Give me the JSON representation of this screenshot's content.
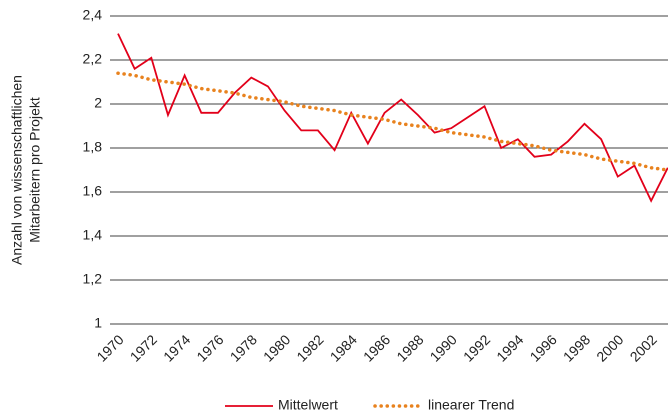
{
  "chart_data": {
    "type": "line",
    "y_label": [
      "Anzahl von wissenschaftlichen",
      "Mitarbeitern pro Projekt"
    ],
    "categories": [
      "1970",
      null,
      "1972",
      null,
      "1974",
      null,
      "1976",
      null,
      "1978",
      null,
      "1980",
      null,
      "1982",
      null,
      "1984",
      null,
      "1986",
      null,
      "1988",
      null,
      "1990",
      null,
      "1992",
      null,
      "1994",
      null,
      "1996",
      null,
      "1998",
      null,
      "2000",
      null,
      "2002",
      null
    ],
    "series": [
      {
        "name": "Mittelwert",
        "color": "#e2001a",
        "style": "solid",
        "values": [
          2.32,
          2.16,
          2.21,
          1.95,
          2.13,
          1.96,
          1.96,
          2.05,
          2.12,
          2.08,
          1.97,
          1.88,
          1.88,
          1.79,
          1.96,
          1.82,
          1.96,
          2.02,
          1.95,
          1.87,
          1.89,
          1.94,
          1.99,
          1.8,
          1.84,
          1.76,
          1.77,
          1.83,
          1.91,
          1.84,
          1.67,
          1.72,
          1.56,
          1.71
        ]
      },
      {
        "name": "linearer Trend",
        "color": "#e8821e",
        "style": "dotted",
        "values": [
          2.14,
          2.13,
          2.11,
          2.1,
          2.09,
          2.07,
          2.06,
          2.05,
          2.03,
          2.02,
          2.01,
          1.99,
          1.98,
          1.97,
          1.95,
          1.94,
          1.93,
          1.91,
          1.9,
          1.89,
          1.87,
          1.86,
          1.85,
          1.83,
          1.82,
          1.81,
          1.79,
          1.78,
          1.77,
          1.75,
          1.74,
          1.73,
          1.71,
          1.7
        ]
      }
    ],
    "ylim": [
      1,
      2.4
    ],
    "yticks": [
      1,
      {
        "value": 1.2,
        "label": "1,2"
      },
      {
        "value": 1.4,
        "label": "1,4"
      },
      {
        "value": 1.6,
        "label": "1,6"
      },
      {
        "value": 1.8,
        "label": "1,8"
      },
      2,
      {
        "value": 2.2,
        "label": "2,2"
      },
      {
        "value": 2.4,
        "label": "2,4"
      }
    ],
    "grid": true,
    "legend": "bottom"
  }
}
